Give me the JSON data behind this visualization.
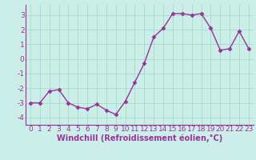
{
  "x": [
    0,
    1,
    2,
    3,
    4,
    5,
    6,
    7,
    8,
    9,
    10,
    11,
    12,
    13,
    14,
    15,
    16,
    17,
    18,
    19,
    20,
    21,
    22,
    23
  ],
  "y": [
    -3.0,
    -3.0,
    -2.2,
    -2.1,
    -3.0,
    -3.3,
    -3.4,
    -3.1,
    -3.5,
    -3.8,
    -2.9,
    -1.6,
    -0.3,
    1.5,
    2.1,
    3.1,
    3.1,
    3.0,
    3.1,
    2.1,
    0.6,
    0.7,
    1.9,
    0.7
  ],
  "line_color": "#993399",
  "marker": "D",
  "marker_size": 2.5,
  "background_color": "#cceee8",
  "grid_color": "#aaddcc",
  "xlabel": "Windchill (Refroidissement éolien,°C)",
  "xlim": [
    -0.5,
    23.5
  ],
  "ylim": [
    -4.5,
    3.7
  ],
  "yticks": [
    -4,
    -3,
    -2,
    -1,
    0,
    1,
    2,
    3
  ],
  "xticks": [
    0,
    1,
    2,
    3,
    4,
    5,
    6,
    7,
    8,
    9,
    10,
    11,
    12,
    13,
    14,
    15,
    16,
    17,
    18,
    19,
    20,
    21,
    22,
    23
  ],
  "xlabel_fontsize": 7,
  "tick_fontsize": 6.5,
  "line_width": 1.0
}
